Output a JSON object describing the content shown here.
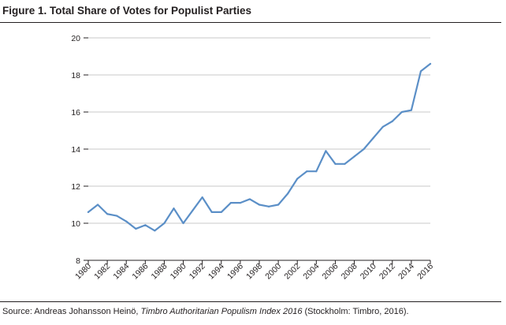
{
  "figure": {
    "title": "Figure 1. Total Share of Votes for Populist Parties"
  },
  "source": {
    "prefix": "Source: Andreas Johansson Heinö, ",
    "work": "Timbro Authoritarian Populism Index 2016",
    "suffix": " (Stockholm: Timbro, 2016)."
  },
  "chart_data": {
    "type": "line",
    "title": "Total Share of Votes for Populist Parties",
    "xlabel": "",
    "ylabel": "",
    "ylim": [
      8,
      20
    ],
    "yticks": [
      8,
      10,
      12,
      14,
      16,
      18,
      20
    ],
    "xlim": [
      1980,
      2016
    ],
    "xticks": [
      "1980",
      "1982",
      "1984",
      "1986",
      "1988",
      "1990",
      "1992",
      "1994",
      "1996",
      "1998",
      "2000",
      "2002",
      "2004",
      "2006",
      "2008",
      "2010",
      "2012",
      "2014",
      "2016"
    ],
    "grid": "horizontal",
    "line_color": "#5b8fc7",
    "series": [
      {
        "x": [
          1980,
          1981,
          1982,
          1983,
          1984,
          1985,
          1986,
          1987,
          1988,
          1989,
          1990,
          1991,
          1992,
          1993,
          1994,
          1995,
          1996,
          1997,
          1998,
          1999,
          2000,
          2001,
          2002,
          2003,
          2004,
          2005,
          2006,
          2007,
          2008,
          2009,
          2010,
          2011,
          2012,
          2013,
          2014,
          2015,
          2016
        ],
        "values": [
          10.6,
          11.0,
          10.5,
          10.4,
          10.1,
          9.7,
          9.9,
          9.6,
          10.0,
          10.8,
          10.0,
          10.7,
          11.4,
          10.6,
          10.6,
          11.1,
          11.1,
          11.3,
          11.0,
          10.9,
          11.0,
          11.6,
          12.4,
          12.8,
          12.8,
          13.9,
          13.2,
          13.2,
          13.6,
          14.0,
          14.6,
          15.2,
          15.5,
          16.0,
          16.1,
          18.2,
          18.6
        ]
      }
    ]
  }
}
